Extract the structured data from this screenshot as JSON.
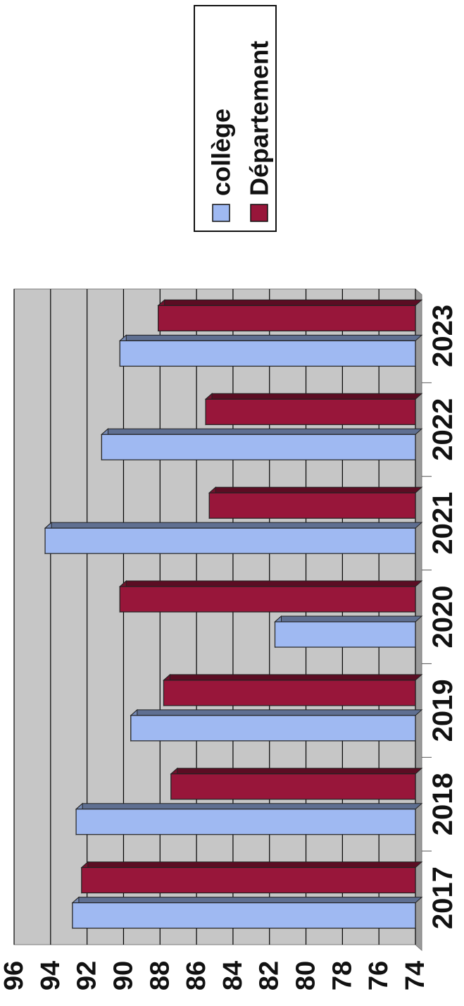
{
  "chart_data": {
    "type": "bar",
    "categories": [
      "2017",
      "2018",
      "2019",
      "2020",
      "2021",
      "2022",
      "2023"
    ],
    "series": [
      {
        "name": "collège",
        "color": "#9fb9f2",
        "values": [
          92.8,
          92.6,
          89.6,
          81.7,
          94.3,
          91.2,
          90.2
        ]
      },
      {
        "name": "Département",
        "color": "#98163a",
        "values": [
          92.3,
          87.4,
          87.8,
          90.2,
          85.3,
          85.5,
          88.1
        ]
      }
    ],
    "ylim": [
      74,
      96
    ],
    "yticks": [
      74,
      76,
      78,
      80,
      82,
      84,
      86,
      88,
      90,
      92,
      94,
      96
    ],
    "grid": true,
    "legend_position": "top-right",
    "orientation": "rotated-90"
  }
}
